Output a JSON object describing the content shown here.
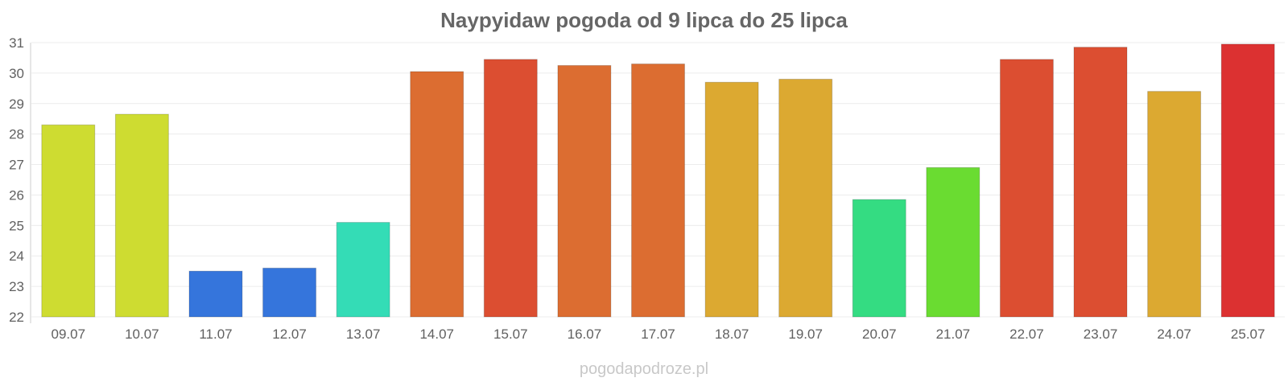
{
  "chart_data": {
    "type": "bar",
    "title": "Naypyidaw pogoda od 9 lipca do 25 lipca",
    "xlabel": "",
    "ylabel": "",
    "ylim": [
      22,
      31
    ],
    "yticks": [
      22,
      23,
      24,
      25,
      26,
      27,
      28,
      29,
      30,
      31
    ],
    "grid": true,
    "categories": [
      "09.07",
      "10.07",
      "11.07",
      "12.07",
      "13.07",
      "14.07",
      "15.07",
      "16.07",
      "17.07",
      "18.07",
      "19.07",
      "20.07",
      "21.07",
      "22.07",
      "23.07",
      "24.07",
      "25.07"
    ],
    "values": [
      28.3,
      28.65,
      23.5,
      23.6,
      25.1,
      30.05,
      30.45,
      30.25,
      30.3,
      29.7,
      29.8,
      25.85,
      26.9,
      30.45,
      30.85,
      29.4,
      30.95
    ],
    "colors": [
      "#cedc31",
      "#cedc31",
      "#3575dc",
      "#3575dc",
      "#34dcb6",
      "#dc6d31",
      "#dc4e31",
      "#dc6d31",
      "#dc6d31",
      "#dca931",
      "#dca931",
      "#34dc82",
      "#6adc31",
      "#dc4e31",
      "#dc4e31",
      "#dca931",
      "#dc3131"
    ]
  },
  "watermark": "pogodapodroze.pl"
}
